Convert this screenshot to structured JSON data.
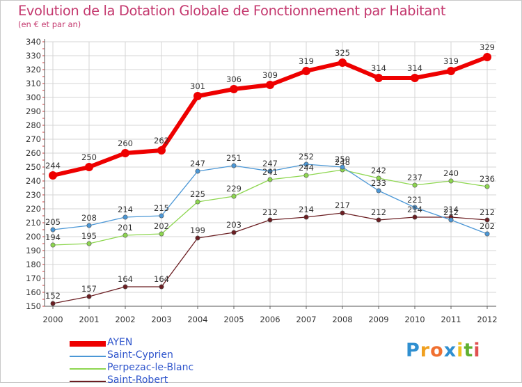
{
  "chart_data": {
    "type": "line",
    "title": "Evolution de la Dotation Globale de Fonctionnement par Habitant",
    "subtitle": "(en € et par an)",
    "xlabel": "",
    "ylabel": "",
    "categories": [
      "2000",
      "2001",
      "2002",
      "2003",
      "2004",
      "2005",
      "2006",
      "2007",
      "2008",
      "2009",
      "2010",
      "2011",
      "2012"
    ],
    "ylim": [
      150,
      340
    ],
    "yticks": [
      150,
      160,
      170,
      180,
      190,
      200,
      210,
      220,
      230,
      240,
      250,
      260,
      270,
      280,
      290,
      300,
      310,
      320,
      330,
      340
    ],
    "grid": true,
    "legend_position": "bottom-left",
    "series": [
      {
        "name": "AYEN",
        "color": "#ee0000",
        "values": [
          244,
          250,
          260,
          262,
          301,
          306,
          309,
          319,
          325,
          314,
          314,
          319,
          329
        ]
      },
      {
        "name": "Saint-Cyprien",
        "color": "#4b97d6",
        "values": [
          205,
          208,
          214,
          215,
          247,
          251,
          247,
          252,
          250,
          233,
          221,
          212,
          202
        ]
      },
      {
        "name": "Perpezac-le-Blanc",
        "color": "#8dd64f",
        "values": [
          194,
          195,
          201,
          202,
          225,
          229,
          241,
          244,
          248,
          242,
          237,
          240,
          236
        ]
      },
      {
        "name": "Saint-Robert",
        "color": "#6b1e22",
        "values": [
          152,
          157,
          164,
          164,
          199,
          203,
          212,
          214,
          217,
          212,
          214,
          214,
          212
        ]
      }
    ]
  },
  "logo": {
    "letters": [
      "P",
      "r",
      "o",
      "x",
      "i",
      "t",
      "i"
    ],
    "colors": [
      "#2f8fd0",
      "#f0a020",
      "#f07030",
      "#2f8fd0",
      "#f0c020",
      "#60b030",
      "#e05050"
    ]
  }
}
